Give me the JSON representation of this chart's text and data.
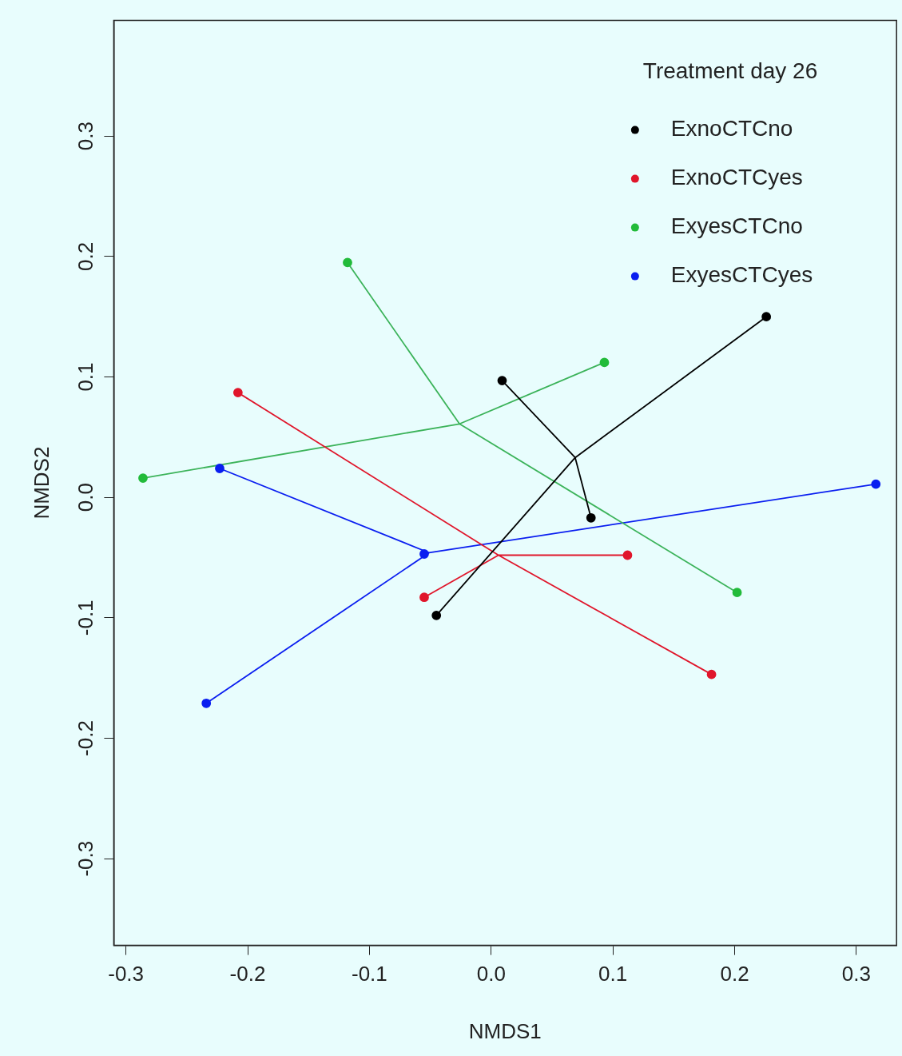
{
  "chart_data": {
    "type": "scatter",
    "xlabel": "NMDS1",
    "ylabel": "NMDS2",
    "legend_title": "Treatment day 26",
    "legend": "top right",
    "grid": false,
    "marker": "circle",
    "xlim": [
      -0.31,
      0.333
    ],
    "ylim": [
      -0.372,
      0.396
    ],
    "xticks": [
      -0.3,
      -0.2,
      -0.1,
      {
        "value": 0,
        "label": "0.0"
      },
      0.1,
      0.2,
      0.3
    ],
    "yticks": [
      -0.3,
      -0.2,
      -0.1,
      {
        "value": 0,
        "label": "0.0"
      },
      0.1,
      0.2,
      0.3
    ],
    "series": [
      {
        "name": "ExnoCTCno",
        "color": "#000000",
        "x": [
          0.009,
          0.226,
          0.082,
          -0.045
        ],
        "values": [
          0.097,
          0.15,
          -0.017,
          -0.098
        ]
      },
      {
        "name": "ExnoCTCyes",
        "color": "#e0162b",
        "x": [
          -0.208,
          0.112,
          -0.055,
          0.181
        ],
        "values": [
          0.087,
          -0.048,
          -0.083,
          -0.147
        ]
      },
      {
        "name": "ExyesCTCno",
        "color": "#22bb3a",
        "x": [
          -0.118,
          0.093,
          -0.286,
          0.202
        ],
        "values": [
          0.195,
          0.112,
          0.016,
          -0.079
        ]
      },
      {
        "name": "ExyesCTCyes",
        "color": "#0a1ef0",
        "x": [
          -0.223,
          0.316,
          -0.055,
          -0.234
        ],
        "values": [
          0.024,
          0.011,
          -0.047,
          -0.171
        ]
      },
      {
        "type": "line",
        "color": "#000000",
        "marker": "none",
        "x": [
          0.009,
          0.069,
          0.226,
          0.069,
          0.082,
          0.069,
          -0.045
        ],
        "values": [
          0.097,
          0.033,
          0.15,
          0.033,
          -0.017,
          0.033,
          -0.098
        ]
      },
      {
        "type": "line",
        "color": "#e0162b",
        "marker": "none",
        "x": [
          -0.208,
          0.006,
          0.112,
          0.006,
          -0.055,
          0.006,
          0.181
        ],
        "values": [
          0.087,
          -0.048,
          -0.048,
          -0.048,
          -0.083,
          -0.048,
          -0.147
        ]
      },
      {
        "type": "line",
        "color": "#3cb35a",
        "marker": "none",
        "x": [
          -0.118,
          -0.026,
          0.093,
          -0.026,
          -0.286,
          -0.026,
          0.202
        ],
        "values": [
          0.195,
          0.061,
          0.112,
          0.061,
          0.016,
          0.061,
          -0.079
        ]
      },
      {
        "type": "line",
        "color": "#0a1ef0",
        "marker": "none",
        "x": [
          -0.223,
          -0.051,
          0.316,
          -0.051,
          -0.055,
          -0.051,
          -0.234
        ],
        "values": [
          0.024,
          -0.046,
          0.011,
          -0.046,
          -0.047,
          -0.046,
          -0.171
        ]
      }
    ]
  }
}
